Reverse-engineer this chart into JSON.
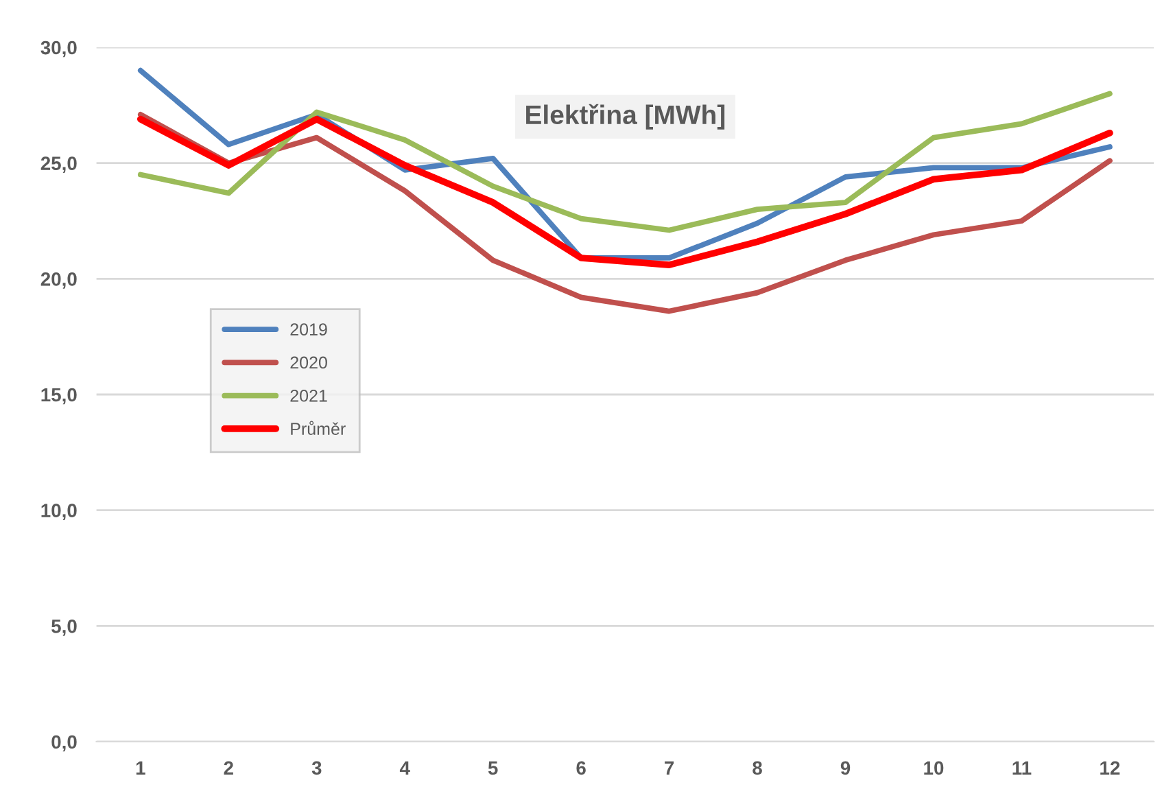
{
  "chart_data": {
    "type": "line",
    "title": "Elektřina [MWh]",
    "categories": [
      "1",
      "2",
      "3",
      "4",
      "5",
      "6",
      "7",
      "8",
      "9",
      "10",
      "11",
      "12"
    ],
    "series": [
      {
        "name": "2019",
        "color": "#4f81bd",
        "values": [
          29.0,
          25.8,
          27.1,
          24.7,
          25.2,
          20.9,
          20.9,
          22.4,
          24.4,
          24.8,
          24.8,
          25.7
        ]
      },
      {
        "name": "2020",
        "color": "#c0504d",
        "values": [
          27.1,
          25.0,
          26.1,
          23.8,
          20.8,
          19.2,
          18.6,
          19.4,
          20.8,
          21.9,
          22.5,
          25.1
        ]
      },
      {
        "name": "2021",
        "color": "#9bbb59",
        "values": [
          24.5,
          23.7,
          27.2,
          26.0,
          24.0,
          22.6,
          22.1,
          23.0,
          23.3,
          26.1,
          26.7,
          28.0
        ]
      },
      {
        "name": "Průměr",
        "color": "#ff0000",
        "values": [
          26.9,
          24.9,
          26.9,
          24.9,
          23.3,
          20.9,
          20.6,
          21.6,
          22.8,
          24.3,
          24.7,
          26.3
        ]
      }
    ],
    "ylim": [
      0,
      30
    ],
    "yticks": [
      {
        "value": 0,
        "label": "0,0"
      },
      {
        "value": 5,
        "label": "5,0"
      },
      {
        "value": 10,
        "label": "10,0"
      },
      {
        "value": 15,
        "label": "15,0"
      },
      {
        "value": 20,
        "label": "20,0"
      },
      {
        "value": 25,
        "label": "25,0"
      },
      {
        "value": 30,
        "label": "30,0"
      }
    ],
    "grid": "y",
    "legend": "left",
    "marker": "none",
    "line_style": "solid"
  }
}
